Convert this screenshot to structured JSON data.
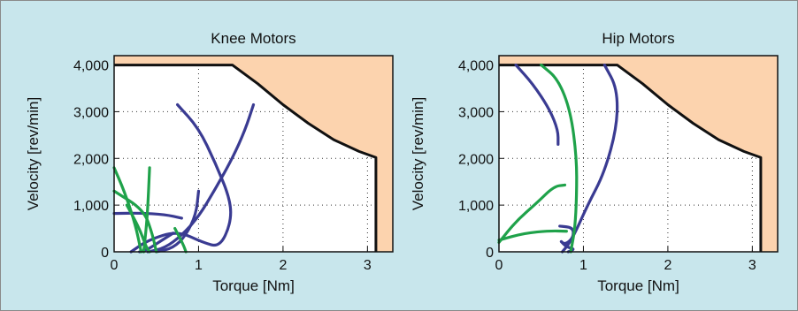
{
  "panel_background": "#c8e6ec",
  "colors": {
    "blue": "#3a3b92",
    "green": "#1fa24a",
    "region": "#fcd3ae",
    "limit": "#111111"
  },
  "chart_data": [
    {
      "type": "line",
      "title": "Knee Motors",
      "xlabel": "Torque [Nm]",
      "ylabel": "Velocity [rev/min]",
      "xlim": [
        0,
        3.3
      ],
      "ylim": [
        0,
        4200
      ],
      "xticks": [
        0,
        1,
        2,
        3
      ],
      "xtick_labels": [
        "0",
        "1",
        "2",
        "3"
      ],
      "yticks": [
        0,
        1000,
        2000,
        3000,
        4000
      ],
      "ytick_labels": [
        "0",
        "1,000",
        "2,000",
        "3,000",
        "4,000"
      ],
      "grid": "dotted",
      "limit_curve": [
        [
          0,
          4000
        ],
        [
          1.4,
          4000
        ],
        [
          1.7,
          3600
        ],
        [
          2.0,
          3150
        ],
        [
          2.3,
          2750
        ],
        [
          2.6,
          2400
        ],
        [
          2.9,
          2150
        ],
        [
          3.1,
          2020
        ],
        [
          3.1,
          0
        ]
      ],
      "series": [
        {
          "color": "blue",
          "points": [
            [
              0.75,
              3150
            ],
            [
              1.0,
              2650
            ],
            [
              1.2,
              1900
            ],
            [
              1.38,
              1100
            ],
            [
              1.38,
              600
            ],
            [
              1.25,
              100
            ],
            [
              1.05,
              200
            ],
            [
              0.75,
              450
            ],
            [
              0.4,
              250
            ],
            [
              0.2,
              0
            ]
          ]
        },
        {
          "color": "blue",
          "points": [
            [
              1.65,
              3150
            ],
            [
              1.55,
              2600
            ],
            [
              1.4,
              2000
            ],
            [
              1.2,
              1350
            ],
            [
              1.0,
              750
            ],
            [
              0.8,
              350
            ],
            [
              0.6,
              80
            ],
            [
              0.4,
              0
            ]
          ]
        },
        {
          "color": "blue",
          "points": [
            [
              1.0,
              1300
            ],
            [
              0.97,
              800
            ],
            [
              0.85,
              350
            ],
            [
              0.7,
              80
            ],
            [
              0.5,
              0
            ]
          ]
        },
        {
          "color": "blue",
          "points": [
            [
              0.0,
              820
            ],
            [
              0.3,
              830
            ],
            [
              0.6,
              800
            ],
            [
              0.8,
              720
            ]
          ]
        },
        {
          "color": "blue",
          "points": [
            [
              0.7,
              400
            ],
            [
              0.55,
              230
            ],
            [
              0.4,
              50
            ],
            [
              0.3,
              0
            ]
          ]
        },
        {
          "color": "green",
          "points": [
            [
              0.0,
              1800
            ],
            [
              0.12,
              1300
            ],
            [
              0.25,
              600
            ],
            [
              0.32,
              0
            ]
          ]
        },
        {
          "color": "green",
          "points": [
            [
              0.0,
              1300
            ],
            [
              0.35,
              900
            ],
            [
              0.45,
              400
            ],
            [
              0.5,
              0
            ]
          ]
        },
        {
          "color": "green",
          "points": [
            [
              0.42,
              1800
            ],
            [
              0.4,
              1000
            ],
            [
              0.38,
              500
            ],
            [
              0.35,
              0
            ]
          ]
        },
        {
          "color": "green",
          "points": [
            [
              0.15,
              1000
            ],
            [
              0.3,
              500
            ],
            [
              0.38,
              100
            ],
            [
              0.42,
              0
            ]
          ]
        },
        {
          "color": "green",
          "points": [
            [
              0.72,
              500
            ],
            [
              0.82,
              150
            ],
            [
              0.85,
              0
            ]
          ]
        }
      ]
    },
    {
      "type": "line",
      "title": "Hip Motors",
      "xlabel": "Torque [Nm]",
      "ylabel": "Velocity [rev/min]",
      "xlim": [
        0,
        3.3
      ],
      "ylim": [
        0,
        4200
      ],
      "xticks": [
        0,
        1,
        2,
        3
      ],
      "xtick_labels": [
        "0",
        "1",
        "2",
        "3"
      ],
      "yticks": [
        0,
        1000,
        2000,
        3000,
        4000
      ],
      "ytick_labels": [
        "0",
        "1,000",
        "2,000",
        "3,000",
        "4,000"
      ],
      "grid": "dotted",
      "limit_curve": [
        [
          0,
          4000
        ],
        [
          1.4,
          4000
        ],
        [
          1.7,
          3600
        ],
        [
          2.0,
          3150
        ],
        [
          2.3,
          2750
        ],
        [
          2.6,
          2400
        ],
        [
          2.9,
          2150
        ],
        [
          3.1,
          2020
        ],
        [
          3.1,
          0
        ]
      ],
      "series": [
        {
          "color": "blue",
          "points": [
            [
              0.2,
              4000
            ],
            [
              0.4,
              3600
            ],
            [
              0.6,
              3050
            ],
            [
              0.7,
              2600
            ],
            [
              0.7,
              2300
            ]
          ]
        },
        {
          "color": "blue",
          "points": [
            [
              1.25,
              4000
            ],
            [
              1.4,
              3500
            ],
            [
              1.4,
              2700
            ],
            [
              1.25,
              1700
            ],
            [
              1.05,
              1000
            ],
            [
              0.9,
              400
            ],
            [
              0.82,
              150
            ],
            [
              0.75,
              0
            ]
          ]
        },
        {
          "color": "blue",
          "points": [
            [
              0.72,
              550
            ],
            [
              0.88,
              520
            ],
            [
              0.88,
              300
            ],
            [
              0.78,
              150
            ],
            [
              0.72,
              250
            ],
            [
              0.8,
              100
            ],
            [
              0.9,
              60
            ],
            [
              0.82,
              0
            ]
          ]
        },
        {
          "color": "green",
          "points": [
            [
              0.5,
              4000
            ],
            [
              0.7,
              3700
            ],
            [
              0.85,
              3000
            ],
            [
              0.92,
              2000
            ],
            [
              0.92,
              1200
            ],
            [
              0.9,
              500
            ],
            [
              0.85,
              0
            ]
          ]
        },
        {
          "color": "green",
          "points": [
            [
              0.0,
              200
            ],
            [
              0.2,
              650
            ],
            [
              0.45,
              1050
            ],
            [
              0.65,
              1400
            ],
            [
              0.78,
              1430
            ]
          ]
        },
        {
          "color": "green",
          "points": [
            [
              0.0,
              250
            ],
            [
              0.3,
              400
            ],
            [
              0.6,
              450
            ],
            [
              0.8,
              440
            ]
          ]
        }
      ]
    }
  ]
}
